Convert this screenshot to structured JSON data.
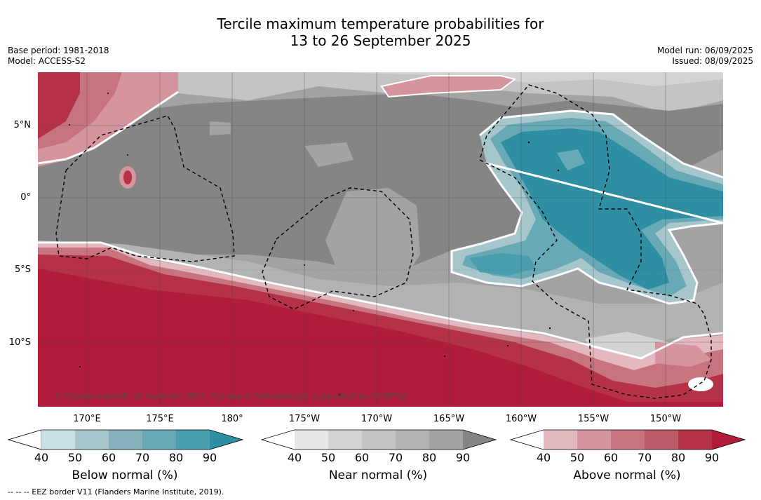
{
  "title_line1": "Tercile maximum temperature probabilities for",
  "title_line2": "13 to 26 September 2025",
  "meta_left": {
    "base_period": "Base period: 1981-2018",
    "model": "Model: ACCESS-S2"
  },
  "meta_right": {
    "model_run": "Model run: 06/09/2025",
    "issued": "Issued: 08/09/2025"
  },
  "lat_labels": [
    "5°N",
    "0°",
    "5°S",
    "10°S"
  ],
  "lon_labels": [
    "170°E",
    "175°E",
    "180°",
    "175°W",
    "170°W",
    "165°W",
    "160°W",
    "155°W",
    "150°W"
  ],
  "copyright": "© Commonwealth of Australia 2025, Bureau of Meteorology, supported by COSPPac",
  "colorbars": [
    {
      "label": "Below normal (%)",
      "ticks": [
        "40",
        "50",
        "60",
        "70",
        "80",
        "90"
      ],
      "colors": [
        "#ffffff",
        "#c8e1e6",
        "#a6c6cc",
        "#85b2bd",
        "#68a9b6",
        "#4a9fae",
        "#2e8fa3"
      ]
    },
    {
      "label": "Near normal (%)",
      "ticks": [
        "40",
        "50",
        "60",
        "70",
        "80",
        "90"
      ],
      "colors": [
        "#ffffff",
        "#e6e6e6",
        "#d3d3d3",
        "#c4c4c4",
        "#b3b3b3",
        "#a3a3a3",
        "#858585"
      ]
    },
    {
      "label": "Above normal (%)",
      "ticks": [
        "40",
        "50",
        "60",
        "70",
        "80",
        "90"
      ],
      "colors": [
        "#ffffff",
        "#e3b8bf",
        "#d5959e",
        "#c87480",
        "#bd5a67",
        "#b53148",
        "#b01c3a"
      ]
    }
  ],
  "footnote": "--  --  -- EEZ border V11 (Flanders Marine Institute, 2019)."
}
